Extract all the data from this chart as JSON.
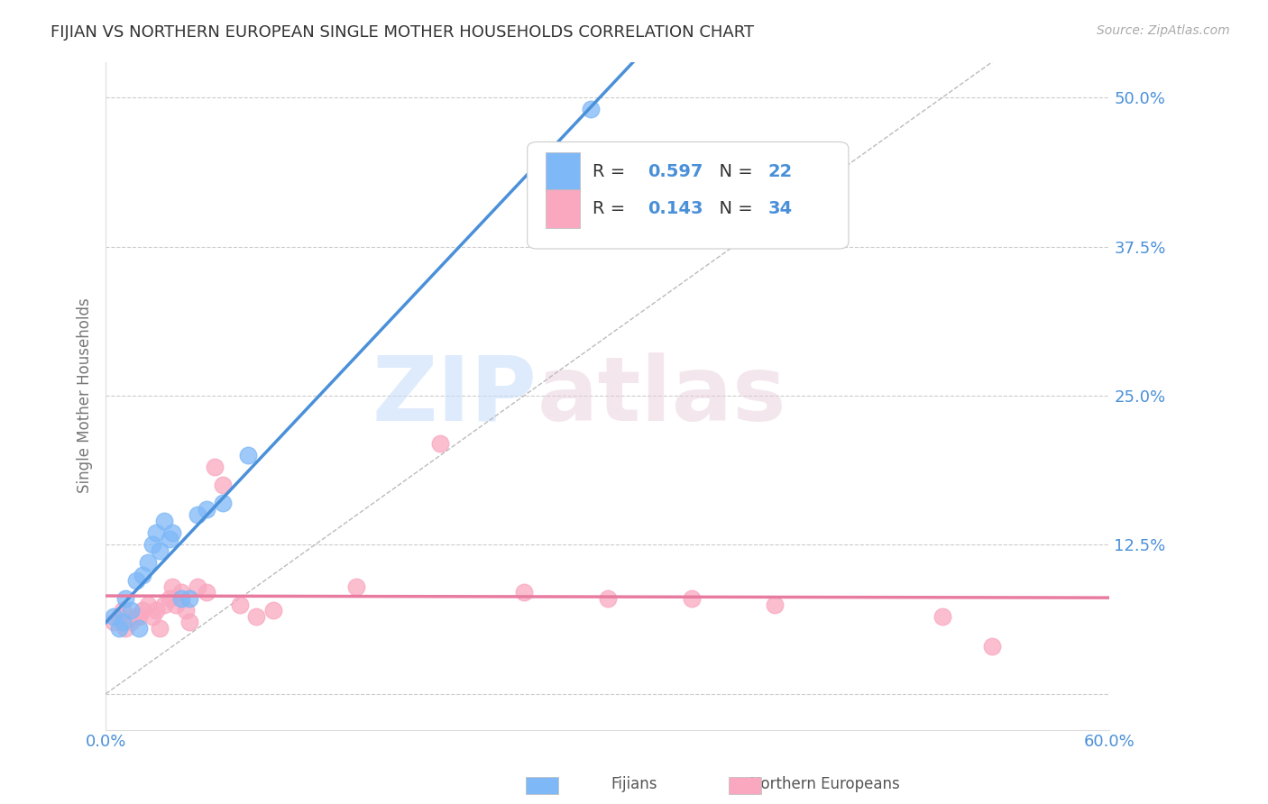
{
  "title": "FIJIAN VS NORTHERN EUROPEAN SINGLE MOTHER HOUSEHOLDS CORRELATION CHART",
  "source": "Source: ZipAtlas.com",
  "ylabel": "Single Mother Households",
  "xlim": [
    0.0,
    0.6
  ],
  "ylim": [
    -0.03,
    0.53
  ],
  "xticks": [
    0.0,
    0.1,
    0.2,
    0.3,
    0.4,
    0.5,
    0.6
  ],
  "xticklabels": [
    "0.0%",
    "",
    "",
    "",
    "",
    "",
    "60.0%"
  ],
  "yticks": [
    0.0,
    0.125,
    0.25,
    0.375,
    0.5
  ],
  "yticklabels": [
    "",
    "12.5%",
    "25.0%",
    "37.5%",
    "50.0%"
  ],
  "fijian_color": "#7EB8F7",
  "fijian_line_color": "#4A90D9",
  "northern_color": "#F9A8C0",
  "northern_line_color": "#E87BA0",
  "fijian_R": 0.597,
  "fijian_N": 22,
  "northern_R": 0.143,
  "northern_N": 34,
  "legend_label_fijian": "Fijians",
  "legend_label_northern": "Northern Europeans",
  "watermark_zip": "ZIP",
  "watermark_atlas": "atlas",
  "background_color": "#FFFFFF",
  "grid_color": "#CCCCCC",
  "title_color": "#333333",
  "axis_label_color": "#777777",
  "tick_label_color": "#4A90D9",
  "legend_text_color_black": "#333333",
  "legend_text_color_blue": "#4A90D9",
  "fijian_x": [
    0.005,
    0.008,
    0.01,
    0.012,
    0.015,
    0.018,
    0.02,
    0.022,
    0.025,
    0.028,
    0.03,
    0.032,
    0.035,
    0.038,
    0.04,
    0.045,
    0.05,
    0.055,
    0.06,
    0.07,
    0.085,
    0.29
  ],
  "fijian_y": [
    0.065,
    0.055,
    0.06,
    0.08,
    0.07,
    0.095,
    0.055,
    0.1,
    0.11,
    0.125,
    0.135,
    0.12,
    0.145,
    0.13,
    0.135,
    0.08,
    0.08,
    0.15,
    0.155,
    0.16,
    0.2,
    0.49
  ],
  "northern_x": [
    0.005,
    0.008,
    0.01,
    0.012,
    0.015,
    0.018,
    0.02,
    0.022,
    0.025,
    0.028,
    0.03,
    0.032,
    0.035,
    0.038,
    0.04,
    0.042,
    0.045,
    0.048,
    0.05,
    0.055,
    0.06,
    0.065,
    0.07,
    0.08,
    0.09,
    0.1,
    0.15,
    0.2,
    0.25,
    0.3,
    0.35,
    0.4,
    0.5,
    0.53
  ],
  "northern_y": [
    0.06,
    0.065,
    0.07,
    0.055,
    0.06,
    0.065,
    0.065,
    0.07,
    0.075,
    0.065,
    0.07,
    0.055,
    0.075,
    0.08,
    0.09,
    0.075,
    0.085,
    0.07,
    0.06,
    0.09,
    0.085,
    0.19,
    0.175,
    0.075,
    0.065,
    0.07,
    0.09,
    0.21,
    0.085,
    0.08,
    0.08,
    0.075,
    0.065,
    0.04
  ],
  "diag_line_x": [
    0.0,
    0.53
  ],
  "diag_line_y": [
    0.0,
    0.53
  ]
}
